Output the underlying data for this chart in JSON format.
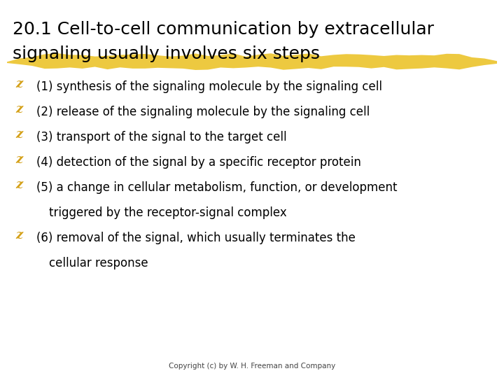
{
  "title_line1": "20.1 Cell-to-cell communication by extracellular",
  "title_line2": "signaling usually involves six steps",
  "title_fontsize": 18,
  "title_color": "#000000",
  "highlight_color": "#E8B800",
  "highlight_alpha": 0.75,
  "bullet_color": "#D4A017",
  "text_color": "#000000",
  "text_fontsize": 12,
  "background_color": "#FFFFFF",
  "copyright": "Copyright (c) by W. H. Freeman and Company",
  "copyright_fontsize": 7.5,
  "bullet_lines": [
    [
      "(1) synthesis of the signaling molecule by the signaling cell"
    ],
    [
      "(2) release of the signaling molecule by the signaling cell"
    ],
    [
      "(3) transport of the signal to the target cell"
    ],
    [
      "(4) detection of the signal by a specific receptor protein"
    ],
    [
      "(5) a change in cellular metabolism, function, or development",
      "    triggered by the receptor-signal complex"
    ],
    [
      "(6) removal of the signal, which usually terminates the",
      "    cellular response"
    ]
  ]
}
